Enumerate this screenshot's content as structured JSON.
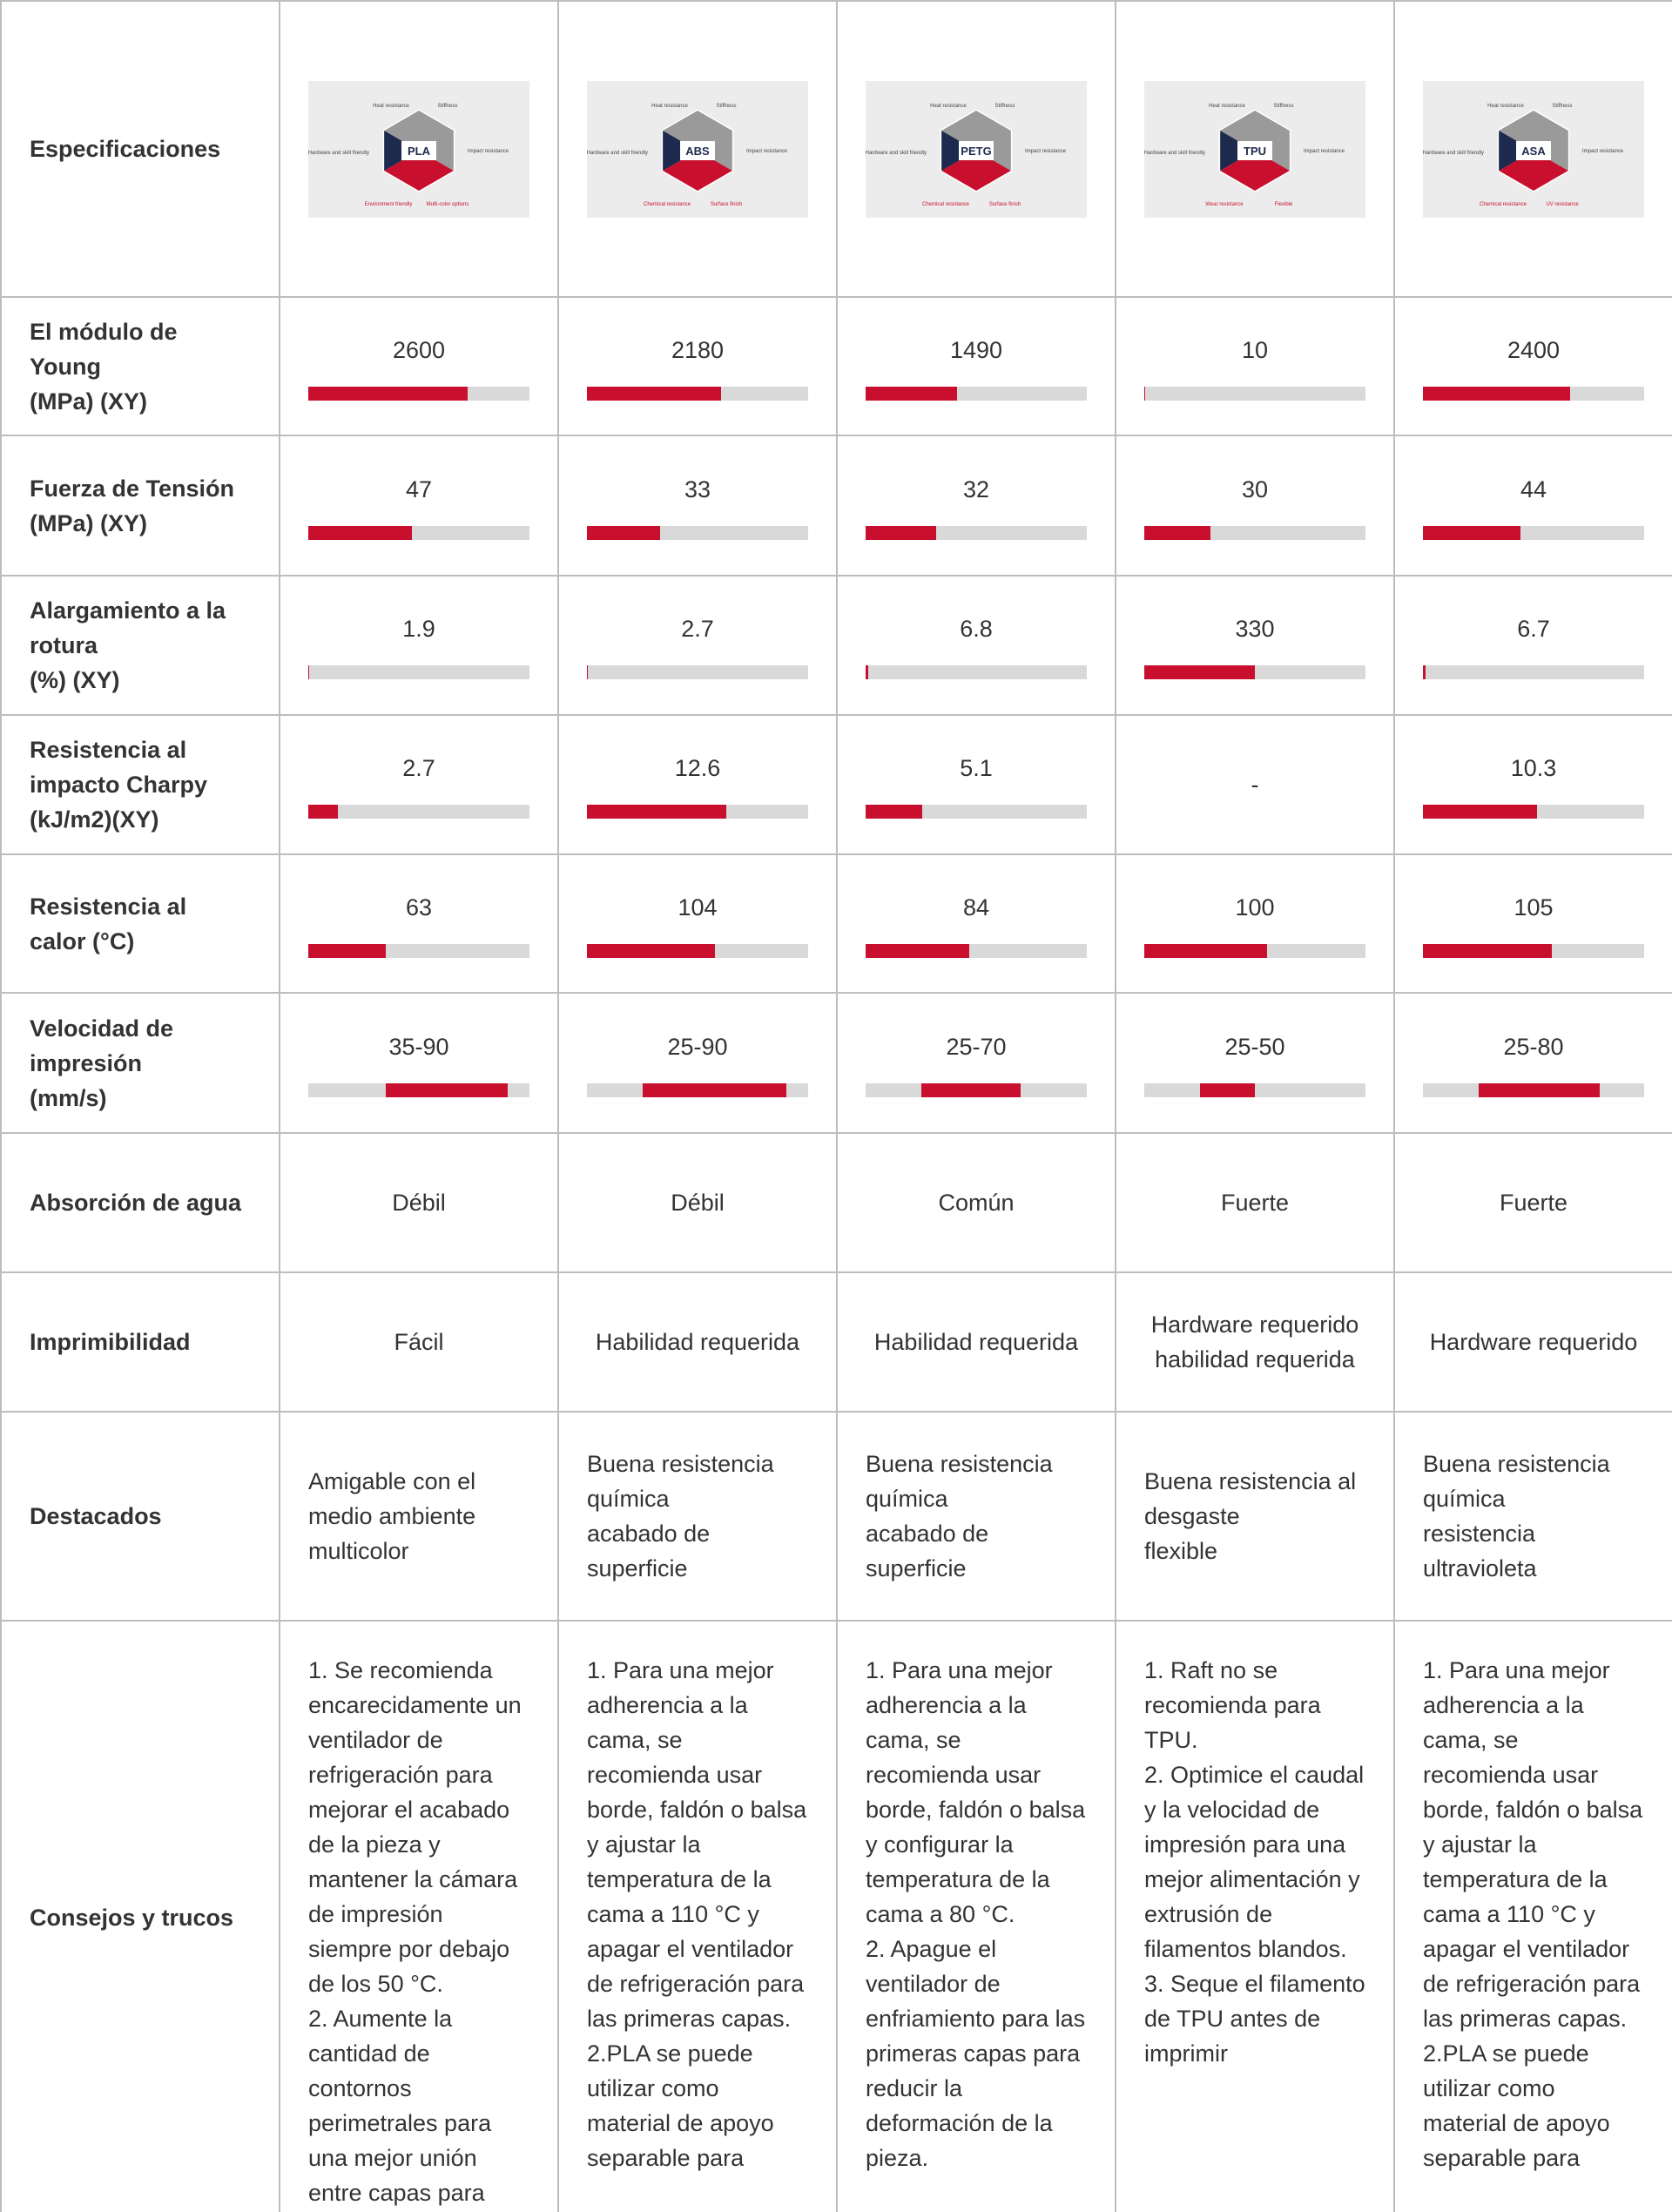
{
  "header": {
    "label": "Especificaciones",
    "features": [
      "Heat resistance",
      "Stiffness",
      "Impact resistance",
      "Hardware and skill friendly"
    ],
    "materials": [
      {
        "name": "PLA",
        "highlights": [
          "Environment friendly",
          "Multi-color options"
        ]
      },
      {
        "name": "ABS",
        "highlights": [
          "Chemical resistance",
          "Surface finish"
        ]
      },
      {
        "name": "PETG",
        "highlights": [
          "Chemical resistance",
          "Surface finish"
        ]
      },
      {
        "name": "TPU",
        "highlights": [
          "Wear resistance",
          "Flexible"
        ]
      },
      {
        "name": "ASA",
        "highlights": [
          "Chemical resistance",
          "UV resistance"
        ]
      }
    ]
  },
  "bar_color": "#c8102e",
  "track_color": "#d9d9d9",
  "rows": [
    {
      "label": "El módulo de\nYoung\n(MPa) (XY)",
      "scale": [
        0,
        3600
      ],
      "values": [
        2600,
        2180,
        1490,
        10,
        2400
      ]
    },
    {
      "label": "Fuerza de Tensión\n(MPa) (XY)",
      "scale": [
        0,
        100
      ],
      "values": [
        47,
        33,
        32,
        30,
        44
      ]
    },
    {
      "label": "Alargamiento a la\nrotura\n(%) (XY)",
      "scale": [
        0,
        660
      ],
      "values": [
        1.9,
        2.7,
        6.8,
        330,
        6.7
      ]
    },
    {
      "label": "Resistencia al\nimpacto Charpy\n(kJ/m2)(XY)",
      "scale": [
        0,
        20
      ],
      "values": [
        2.7,
        12.6,
        5.1,
        null,
        10.3
      ],
      "value_labels": [
        "2.7",
        "12.6",
        "5.1",
        "-",
        "10.3"
      ]
    },
    {
      "label": "Resistencia al\ncalor (°C)",
      "scale": [
        0,
        180
      ],
      "values": [
        63,
        104,
        84,
        100,
        105
      ]
    },
    {
      "label": "Velocidad de\nimpresión\n(mm/s)",
      "scale": [
        0,
        100
      ],
      "values": [
        [
          35,
          90
        ],
        [
          25,
          90
        ],
        [
          25,
          70
        ],
        [
          25,
          50
        ],
        [
          25,
          80
        ]
      ],
      "value_labels": [
        "35-90",
        "25-90",
        "25-70",
        "25-50",
        "25-80"
      ]
    },
    {
      "label": "Absorción de agua",
      "cells": [
        "Débil",
        "Débil",
        "Común",
        "Fuerte",
        "Fuerte"
      ]
    },
    {
      "label": "Imprimibilidad",
      "cells": [
        "Fácil",
        "Habilidad requerida",
        "Habilidad requerida",
        "Hardware requerido\nhabilidad requerida",
        "Hardware requerido"
      ]
    },
    {
      "label": "Destacados",
      "align": "left",
      "cells": [
        "Amigable con el medio ambiente\nmulticolor",
        "Buena resistencia química\nacabado de superficie",
        "Buena resistencia química\nacabado de superficie",
        "Buena resistencia al desgaste\nflexible",
        "Buena resistencia química\nresistencia ultravioleta"
      ]
    },
    {
      "label": "Consejos y trucos",
      "align": "top",
      "cells": [
        "1. Se recomienda encarecidamente un ventilador de refrigeración para mejorar el acabado de la pieza y mantener la cámara de impresión siempre por debajo de los 50 °C.\n2. Aumente la cantidad de contornos perimetrales para una mejor unión entre capas para",
        "1. Para una mejor adherencia a la cama, se recomienda usar borde, faldón o balsa y ajustar la temperatura de la cama a 110 °C y apagar el ventilador de refrigeración para las primeras capas.\n2.PLA se puede utilizar como material de apoyo separable para",
        "1. Para una mejor adherencia a la cama, se recomienda usar borde, faldón o balsa y configurar la temperatura de la cama a 80 °C.\n2. Apague el ventilador de enfriamiento para las primeras capas para reducir la deformación de la pieza.",
        "1. Raft no se recomienda para TPU.\n2. Optimice el caudal y la velocidad de impresión para una mejor alimentación y extrusión de filamentos blandos.\n3. Seque el filamento de TPU antes de imprimir",
        "1. Para una mejor adherencia a la cama, se recomienda usar borde, faldón o balsa y ajustar la temperatura de la cama a 110 °C y apagar el ventilador de refrigeración para las primeras capas.\n2.PLA se puede utilizar como material de apoyo separable para"
      ]
    }
  ]
}
